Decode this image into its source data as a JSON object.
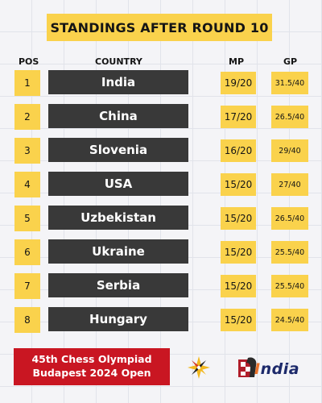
{
  "title": "STANDINGS AFTER ROUND 10",
  "headers": {
    "pos": "POS",
    "country": "COUNTRY",
    "mp": "MP",
    "gp": "GP"
  },
  "rows": [
    {
      "pos": "1",
      "country": "India",
      "mp": "19/20",
      "gp": "31.5/40"
    },
    {
      "pos": "2",
      "country": "China",
      "mp": "17/20",
      "gp": "26.5/40"
    },
    {
      "pos": "3",
      "country": "Slovenia",
      "mp": "16/20",
      "gp": "29/40"
    },
    {
      "pos": "4",
      "country": "USA",
      "mp": "15/20",
      "gp": "27/40"
    },
    {
      "pos": "5",
      "country": "Uzbekistan",
      "mp": "15/20",
      "gp": "26.5/40"
    },
    {
      "pos": "6",
      "country": "Ukraine",
      "mp": "15/20",
      "gp": "25.5/40"
    },
    {
      "pos": "7",
      "country": "Serbia",
      "mp": "15/20",
      "gp": "25.5/40"
    },
    {
      "pos": "8",
      "country": "Hungary",
      "mp": "15/20",
      "gp": "24.5/40"
    }
  ],
  "footer": {
    "line1": "45th Chess Olympiad",
    "line2": "Budapest 2024 Open",
    "brand_word_main": "ndia",
    "brand_word_initial": "I"
  },
  "colors": {
    "accent_yellow": "#fad24c",
    "row_dark": "#393939",
    "footer_red": "#c91622",
    "brand_blue": "#1d2a6b",
    "brand_orange": "#e8712a"
  }
}
